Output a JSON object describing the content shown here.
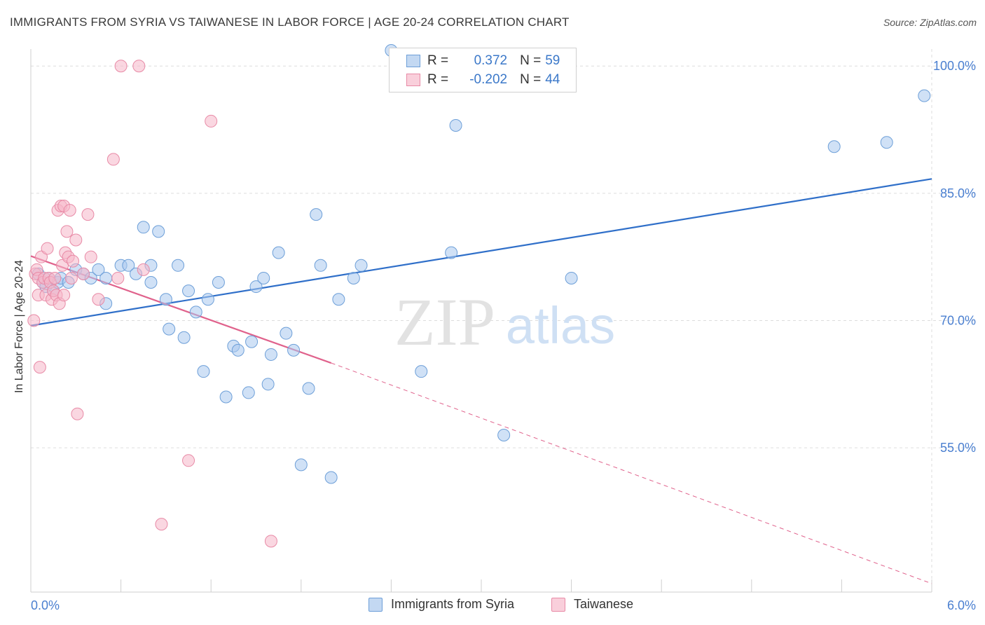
{
  "title": "IMMIGRANTS FROM SYRIA VS TAIWANESE IN LABOR FORCE | AGE 20-24 CORRELATION CHART",
  "source": "Source: ZipAtlas.com",
  "watermark": {
    "zip": "ZIP",
    "atlas": "atlas"
  },
  "legend_top": {
    "rows": [
      {
        "r_label": "R =",
        "r_value": "0.372",
        "n_label": "N =",
        "n_value": "59"
      },
      {
        "r_label": "R =",
        "r_value": "-0.202",
        "n_label": "N =",
        "n_value": "44"
      }
    ]
  },
  "legend_bottom": {
    "series1": "Immigrants from Syria",
    "series2": "Taiwanese"
  },
  "colors": {
    "blue_fill": "#aac8ee",
    "blue_stroke": "#6d9fd8",
    "blue_line": "#2f6fc9",
    "pink_fill": "#f5b7c9",
    "pink_stroke": "#e88aa6",
    "pink_line": "#e0628c",
    "axis_text": "#4a7fd0",
    "grid": "#dddddd"
  },
  "chart_data": {
    "type": "scatter",
    "title": "IMMIGRANTS FROM SYRIA VS TAIWANESE IN LABOR FORCE | AGE 20-24 CORRELATION CHART",
    "xlabel": "",
    "ylabel": "In Labor Force | Age 20-24",
    "xlim": [
      0,
      6
    ],
    "ylim": [
      38,
      102
    ],
    "x_tick_labels": [
      {
        "value": 0,
        "label": "0.0%"
      },
      {
        "value": 6,
        "label": "6.0%"
      }
    ],
    "y_tick_labels": [
      {
        "value": 55,
        "label": "55.0%"
      },
      {
        "value": 70,
        "label": "70.0%"
      },
      {
        "value": 85,
        "label": "85.0%"
      },
      {
        "value": 100,
        "label": "100.0%"
      }
    ],
    "grid": true,
    "series": [
      {
        "name": "Immigrants from Syria",
        "color": "#aac8ee",
        "points": [
          [
            0.05,
            75.5
          ],
          [
            0.08,
            74.5
          ],
          [
            0.1,
            74.0
          ],
          [
            0.12,
            75.0
          ],
          [
            0.15,
            73.5
          ],
          [
            0.18,
            74.5
          ],
          [
            0.2,
            75.0
          ],
          [
            0.25,
            74.5
          ],
          [
            0.3,
            76.0
          ],
          [
            0.35,
            75.5
          ],
          [
            0.4,
            75.0
          ],
          [
            0.45,
            76.0
          ],
          [
            0.5,
            75.0
          ],
          [
            0.5,
            72.0
          ],
          [
            0.6,
            76.5
          ],
          [
            0.65,
            76.5
          ],
          [
            0.7,
            75.5
          ],
          [
            0.75,
            81.0
          ],
          [
            0.8,
            76.5
          ],
          [
            0.8,
            74.5
          ],
          [
            0.85,
            80.5
          ],
          [
            0.9,
            72.5
          ],
          [
            0.92,
            69.0
          ],
          [
            0.98,
            76.5
          ],
          [
            1.02,
            68.0
          ],
          [
            1.05,
            73.5
          ],
          [
            1.1,
            71.0
          ],
          [
            1.15,
            64.0
          ],
          [
            1.18,
            72.5
          ],
          [
            1.25,
            74.5
          ],
          [
            1.3,
            61.0
          ],
          [
            1.35,
            67.0
          ],
          [
            1.38,
            66.5
          ],
          [
            1.45,
            61.5
          ],
          [
            1.47,
            67.5
          ],
          [
            1.5,
            74.0
          ],
          [
            1.55,
            75.0
          ],
          [
            1.58,
            62.5
          ],
          [
            1.6,
            66.0
          ],
          [
            1.65,
            78.0
          ],
          [
            1.7,
            68.5
          ],
          [
            1.75,
            66.5
          ],
          [
            1.8,
            53.0
          ],
          [
            1.85,
            62.0
          ],
          [
            1.9,
            82.5
          ],
          [
            1.93,
            76.5
          ],
          [
            2.0,
            51.5
          ],
          [
            2.05,
            72.5
          ],
          [
            2.15,
            75.0
          ],
          [
            2.2,
            76.5
          ],
          [
            2.4,
            102.5
          ],
          [
            2.6,
            64.0
          ],
          [
            2.8,
            78.0
          ],
          [
            2.83,
            93.0
          ],
          [
            3.15,
            56.5
          ],
          [
            3.6,
            75.0
          ],
          [
            5.35,
            90.5
          ],
          [
            5.7,
            91.0
          ],
          [
            5.95,
            96.5
          ]
        ]
      },
      {
        "name": "Taiwanese",
        "color": "#f5b7c9",
        "points": [
          [
            0.02,
            70.0
          ],
          [
            0.03,
            75.5
          ],
          [
            0.04,
            76.0
          ],
          [
            0.05,
            75.0
          ],
          [
            0.05,
            73.0
          ],
          [
            0.06,
            64.5
          ],
          [
            0.07,
            77.5
          ],
          [
            0.08,
            74.5
          ],
          [
            0.09,
            75.0
          ],
          [
            0.1,
            73.0
          ],
          [
            0.11,
            78.5
          ],
          [
            0.12,
            75.0
          ],
          [
            0.13,
            74.5
          ],
          [
            0.14,
            72.5
          ],
          [
            0.15,
            73.5
          ],
          [
            0.16,
            75.0
          ],
          [
            0.17,
            73.0
          ],
          [
            0.18,
            83.0
          ],
          [
            0.19,
            72.0
          ],
          [
            0.2,
            83.5
          ],
          [
            0.21,
            76.5
          ],
          [
            0.22,
            83.5
          ],
          [
            0.23,
            78.0
          ],
          [
            0.24,
            80.5
          ],
          [
            0.25,
            77.5
          ],
          [
            0.26,
            83.0
          ],
          [
            0.27,
            75.0
          ],
          [
            0.28,
            77.0
          ],
          [
            0.3,
            79.5
          ],
          [
            0.31,
            59.0
          ],
          [
            0.35,
            75.5
          ],
          [
            0.38,
            82.5
          ],
          [
            0.4,
            77.5
          ],
          [
            0.45,
            72.5
          ],
          [
            0.55,
            89.0
          ],
          [
            0.58,
            75.0
          ],
          [
            0.6,
            100.0
          ],
          [
            0.72,
            100.0
          ],
          [
            0.75,
            76.0
          ],
          [
            0.87,
            46.0
          ],
          [
            1.05,
            53.5
          ],
          [
            1.2,
            93.5
          ],
          [
            1.6,
            44.0
          ],
          [
            0.22,
            73.0
          ]
        ]
      }
    ],
    "trend_lines": [
      {
        "series": "Immigrants from Syria",
        "x0": 0.0,
        "y0": 69.4,
        "x1": 6.0,
        "y1": 86.7,
        "style": "solid"
      },
      {
        "series": "Taiwanese",
        "x0": 0.0,
        "y0": 77.6,
        "x1": 2.0,
        "y1": 65.0,
        "style": "solid"
      },
      {
        "series": "Taiwanese",
        "x0": 2.0,
        "y0": 65.0,
        "x1": 6.0,
        "y1": 39.0,
        "style": "dashed"
      }
    ]
  }
}
